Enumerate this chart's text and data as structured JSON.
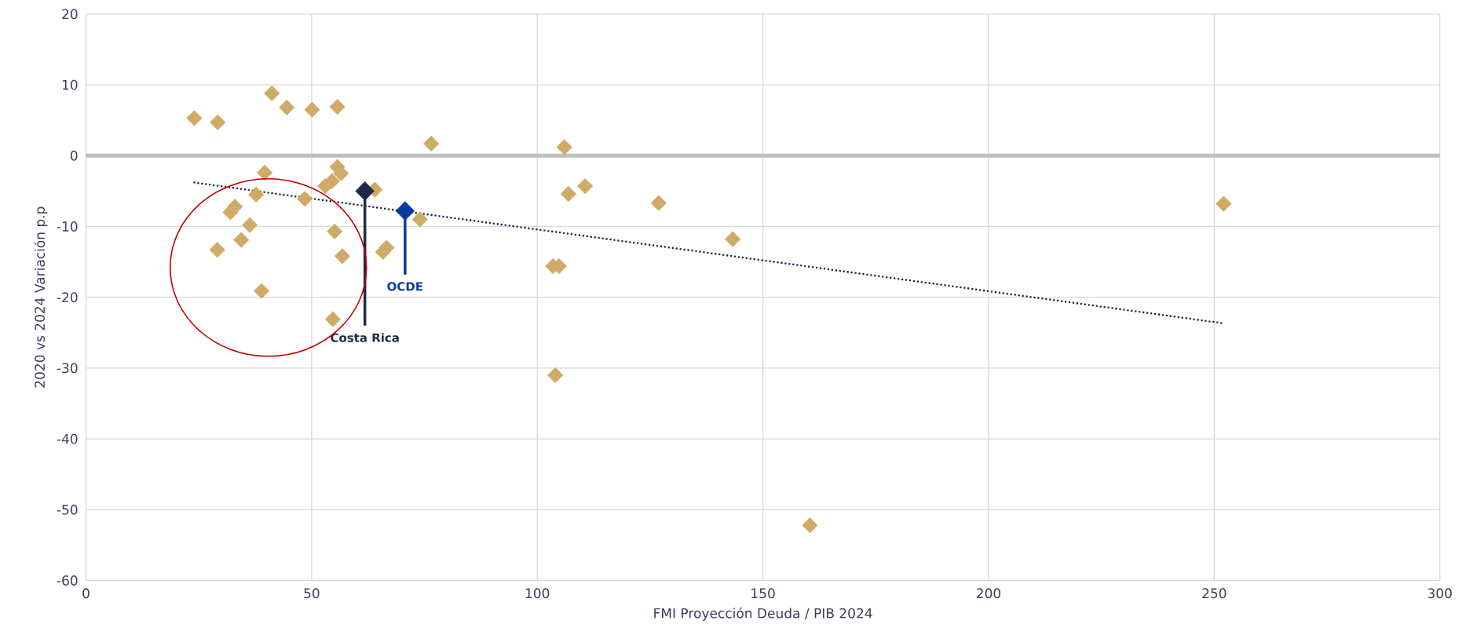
{
  "chart_data": {
    "type": "scatter",
    "xlabel": "FMI Proyección Deuda / PIB 2024",
    "ylabel": "2020 vs 2024 Variación p.p",
    "xlim": [
      0,
      300
    ],
    "ylim": [
      -60,
      20
    ],
    "xticks": [
      0,
      50,
      100,
      150,
      200,
      250,
      300
    ],
    "yticks": [
      -60,
      -50,
      -40,
      -30,
      -20,
      -10,
      0,
      10,
      20
    ],
    "grid": true,
    "marker": "diamond",
    "series": [
      {
        "color": "#cfab67",
        "x": [
          24.0,
          29.2,
          41.2,
          44.5,
          50.1,
          55.7,
          76.5,
          106.0,
          39.6,
          55.7,
          56.5,
          54.5,
          53.0,
          64.0,
          74.0,
          48.5,
          37.7,
          32.0,
          33.0,
          36.3,
          34.4,
          29.1,
          38.9,
          55.1,
          56.8,
          65.8,
          66.6,
          54.7,
          106.9,
          110.6,
          126.9,
          143.3,
          103.5,
          104.8,
          104.0,
          160.4,
          252.1
        ],
        "values": [
          5.3,
          4.7,
          8.8,
          6.8,
          6.5,
          6.9,
          1.7,
          1.2,
          -2.4,
          -1.6,
          -2.5,
          -3.6,
          -4.3,
          -4.8,
          -9.0,
          -6.1,
          -5.5,
          -8.0,
          -7.2,
          -9.8,
          -11.9,
          -13.3,
          -19.1,
          -10.7,
          -14.2,
          -13.6,
          -13.0,
          -23.1,
          -5.4,
          -4.3,
          -6.7,
          -11.8,
          -15.6,
          -15.6,
          -31.0,
          -52.2,
          -6.8
        ]
      },
      {
        "color": "#1f2a4a",
        "x": [
          61.8
        ],
        "values": [
          -5.0
        ]
      },
      {
        "color": "#0a3a9e",
        "x": [
          70.7
        ],
        "values": [
          -7.8
        ]
      },
      {
        "type": "line",
        "color": "#1f2a4a",
        "line_style": "dotted",
        "marker": "none",
        "x": [
          24.0,
          252.3
        ],
        "values": [
          -3.8,
          -23.7
        ]
      }
    ],
    "ref_lines": [
      {
        "axis": "y",
        "value": 0,
        "color": "#bfbfbf"
      }
    ],
    "annotations": [
      {
        "text": "Costa Rica",
        "x": 61.8,
        "y": -5.0
      },
      {
        "text": "OCDE",
        "x": 70.7,
        "y": -7.8
      }
    ]
  }
}
